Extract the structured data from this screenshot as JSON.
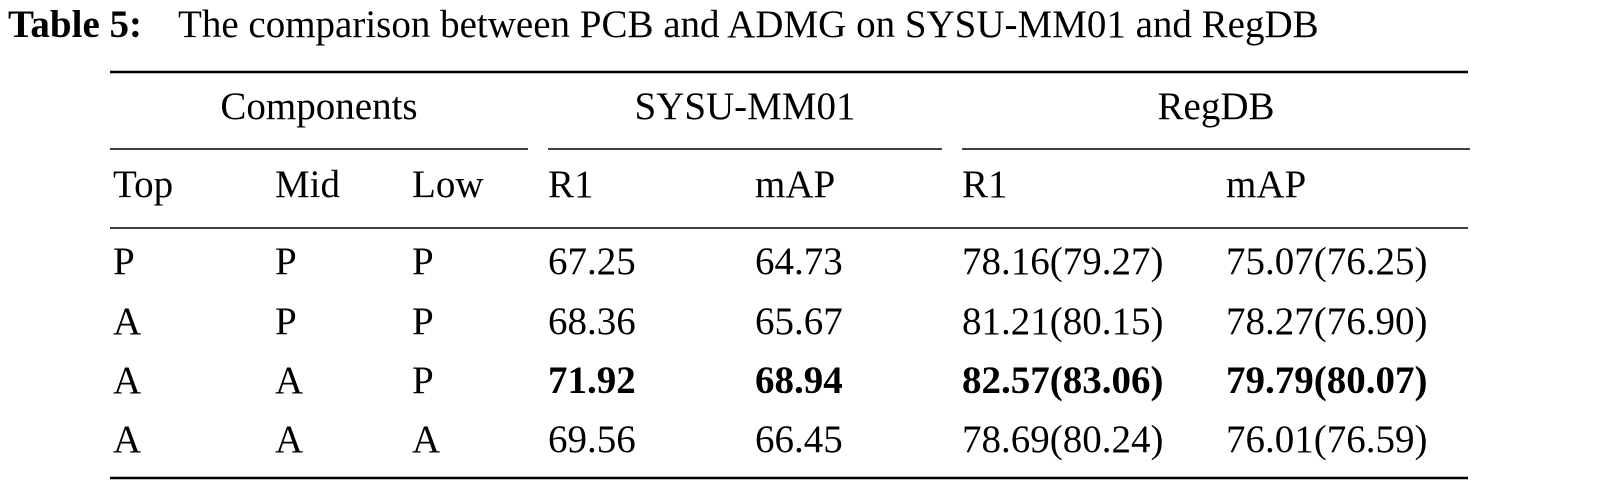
{
  "caption": {
    "label": "Table 5:",
    "text": "The comparison between PCB and ADMG on SYSU-MM01 and RegDB"
  },
  "table": {
    "groups": [
      "Components",
      "SYSU-MM01",
      "RegDB"
    ],
    "columns": [
      "Top",
      "Mid",
      "Low",
      "R1",
      "mAP",
      "R1",
      "mAP"
    ],
    "rows": [
      {
        "components": [
          "P",
          "P",
          "P"
        ],
        "results": [
          "67.25",
          "64.73",
          "78.16(79.27)",
          "75.07(76.25)"
        ],
        "bold": false
      },
      {
        "components": [
          "A",
          "P",
          "P"
        ],
        "results": [
          "68.36",
          "65.67",
          "81.21(80.15)",
          "78.27(76.90)"
        ],
        "bold": false
      },
      {
        "components": [
          "A",
          "A",
          "P"
        ],
        "results": [
          "71.92",
          "68.94",
          "82.57(83.06)",
          "79.79(80.07)"
        ],
        "bold": true
      },
      {
        "components": [
          "A",
          "A",
          "A"
        ],
        "results": [
          "69.56",
          "66.45",
          "78.69(80.24)",
          "76.01(76.59)"
        ],
        "bold": false
      }
    ]
  }
}
